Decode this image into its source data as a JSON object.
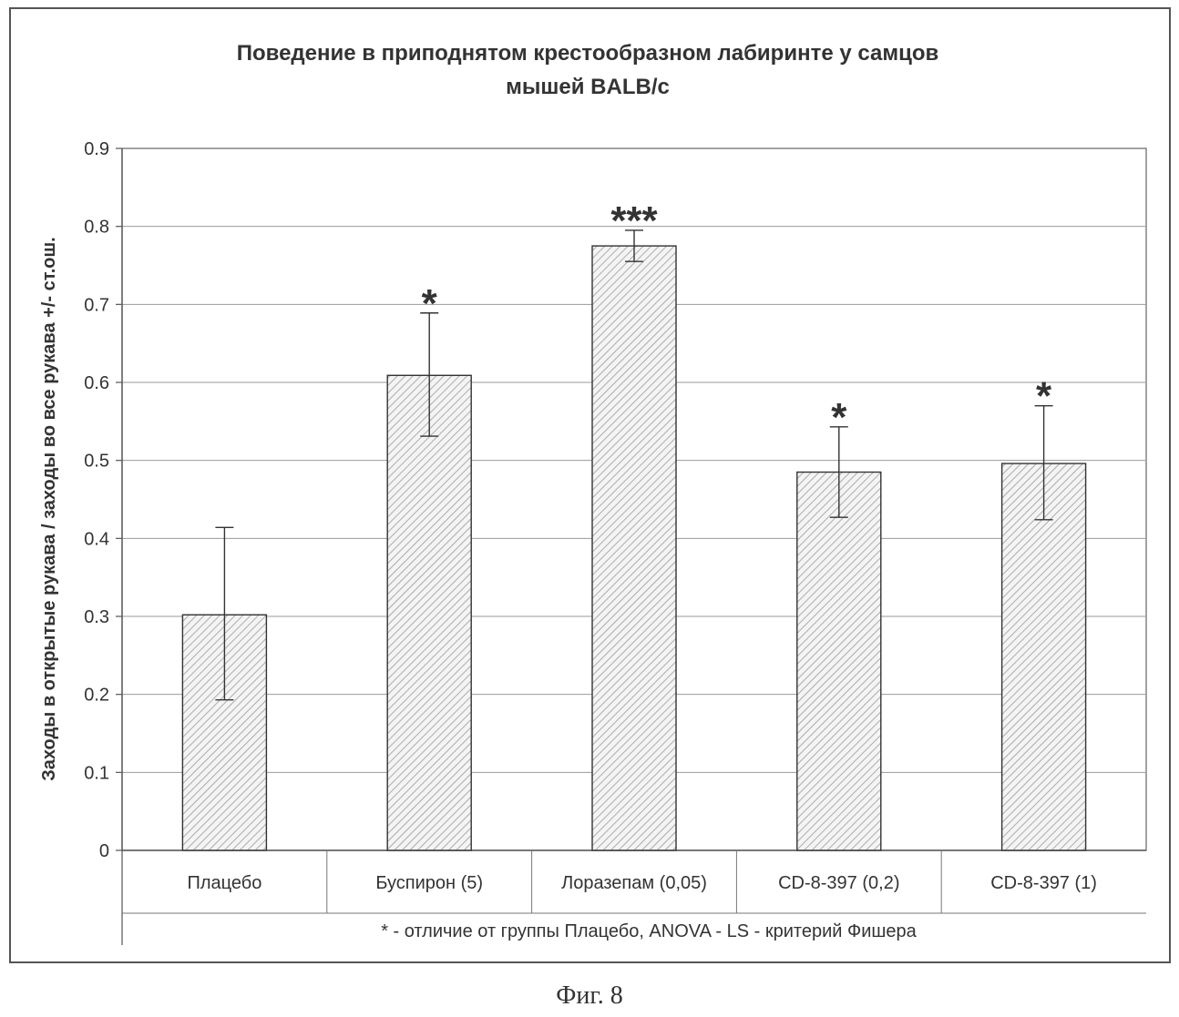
{
  "chart_data": {
    "type": "bar",
    "title_line1": "Поведение в приподнятом крестообразном лабиринте у самцов",
    "title_line2": "мышей BALB/c",
    "ylabel": "Заходы в открытые рукава / заходы во все рукава +/- ст.ош.",
    "xlabel": "",
    "categories": [
      "Плацебо",
      "Буспирон (5)",
      "Лоразепам (0,05)",
      "CD-8-397 (0,2)",
      "CD-8-397 (1)"
    ],
    "values": [
      0.302,
      0.609,
      0.775,
      0.485,
      0.496
    ],
    "error_low": [
      0.193,
      0.531,
      0.755,
      0.427,
      0.424
    ],
    "error_high": [
      0.414,
      0.689,
      0.795,
      0.543,
      0.57
    ],
    "significance": [
      "",
      "*",
      "***",
      "*",
      "*"
    ],
    "ylim": [
      0,
      0.9
    ],
    "yticks": [
      "0",
      "0.1",
      "0.2",
      "0.3",
      "0.4",
      "0.5",
      "0.6",
      "0.7",
      "0.8",
      "0.9"
    ],
    "grid": true,
    "footnote": "* - отличие от группы Плацебо, ANOVA - LS - критерий Фишера"
  },
  "caption": "Фиг. 8"
}
